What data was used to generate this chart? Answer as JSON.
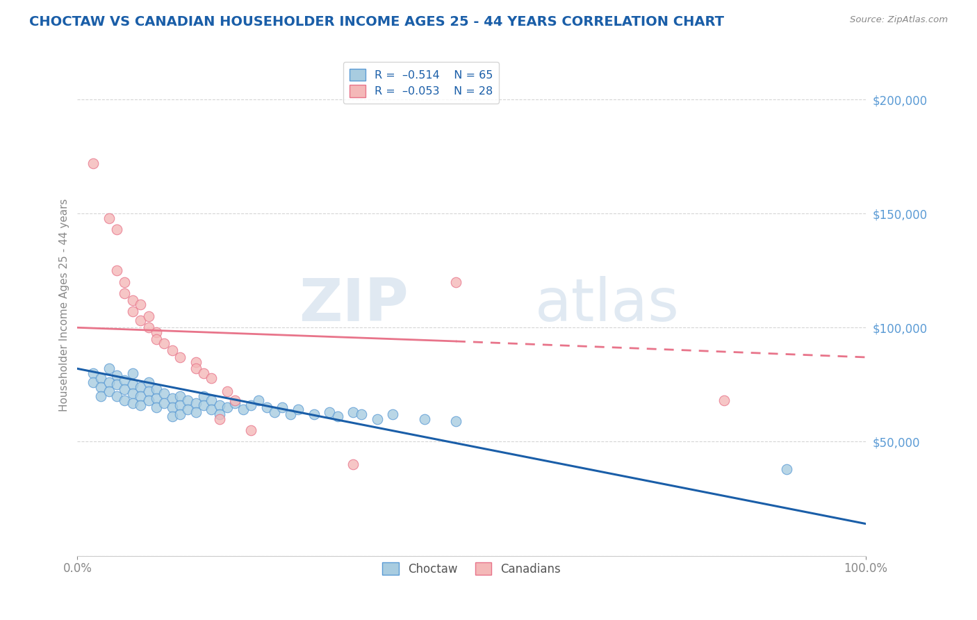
{
  "title": "CHOCTAW VS CANADIAN HOUSEHOLDER INCOME AGES 25 - 44 YEARS CORRELATION CHART",
  "source": "Source: ZipAtlas.com",
  "ylabel": "Householder Income Ages 25 - 44 years",
  "watermark_zip": "ZIP",
  "watermark_atlas": "atlas",
  "xmin": 0.0,
  "xmax": 100.0,
  "ymin": 0,
  "ymax": 220000,
  "yticks": [
    0,
    50000,
    100000,
    150000,
    200000
  ],
  "blue_color": "#a8cce0",
  "blue_edge": "#5b9bd5",
  "pink_color": "#f4b8b8",
  "pink_edge": "#e8748a",
  "blue_line_color": "#1a5ea8",
  "pink_line_color": "#e8748a",
  "choctaw_trend_x0": 0,
  "choctaw_trend_y0": 82000,
  "choctaw_trend_x1": 100,
  "choctaw_trend_y1": 14000,
  "canadian_trend_solid_x0": 0,
  "canadian_trend_solid_y0": 100000,
  "canadian_trend_solid_x1": 48,
  "canadian_trend_solid_y1": 94000,
  "canadian_trend_dashed_x0": 48,
  "canadian_trend_dashed_y0": 94000,
  "canadian_trend_dashed_x1": 100,
  "canadian_trend_dashed_y1": 87000,
  "choctaw_points": [
    [
      2,
      80000
    ],
    [
      2,
      76000
    ],
    [
      3,
      78000
    ],
    [
      3,
      74000
    ],
    [
      3,
      70000
    ],
    [
      4,
      82000
    ],
    [
      4,
      76000
    ],
    [
      4,
      72000
    ],
    [
      5,
      79000
    ],
    [
      5,
      75000
    ],
    [
      5,
      70000
    ],
    [
      6,
      77000
    ],
    [
      6,
      73000
    ],
    [
      6,
      68000
    ],
    [
      7,
      80000
    ],
    [
      7,
      75000
    ],
    [
      7,
      71000
    ],
    [
      7,
      67000
    ],
    [
      8,
      74000
    ],
    [
      8,
      70000
    ],
    [
      8,
      66000
    ],
    [
      9,
      76000
    ],
    [
      9,
      72000
    ],
    [
      9,
      68000
    ],
    [
      10,
      73000
    ],
    [
      10,
      69000
    ],
    [
      10,
      65000
    ],
    [
      11,
      71000
    ],
    [
      11,
      67000
    ],
    [
      12,
      69000
    ],
    [
      12,
      65000
    ],
    [
      12,
      61000
    ],
    [
      13,
      70000
    ],
    [
      13,
      66000
    ],
    [
      13,
      62000
    ],
    [
      14,
      68000
    ],
    [
      14,
      64000
    ],
    [
      15,
      67000
    ],
    [
      15,
      63000
    ],
    [
      16,
      70000
    ],
    [
      16,
      66000
    ],
    [
      17,
      68000
    ],
    [
      17,
      64000
    ],
    [
      18,
      66000
    ],
    [
      18,
      62000
    ],
    [
      19,
      65000
    ],
    [
      20,
      67000
    ],
    [
      21,
      64000
    ],
    [
      22,
      66000
    ],
    [
      23,
      68000
    ],
    [
      24,
      65000
    ],
    [
      25,
      63000
    ],
    [
      26,
      65000
    ],
    [
      27,
      62000
    ],
    [
      28,
      64000
    ],
    [
      30,
      62000
    ],
    [
      32,
      63000
    ],
    [
      33,
      61000
    ],
    [
      35,
      63000
    ],
    [
      36,
      62000
    ],
    [
      38,
      60000
    ],
    [
      40,
      62000
    ],
    [
      44,
      60000
    ],
    [
      48,
      59000
    ],
    [
      90,
      38000
    ]
  ],
  "canadian_points": [
    [
      2,
      172000
    ],
    [
      4,
      148000
    ],
    [
      5,
      143000
    ],
    [
      5,
      125000
    ],
    [
      6,
      120000
    ],
    [
      6,
      115000
    ],
    [
      7,
      112000
    ],
    [
      7,
      107000
    ],
    [
      8,
      110000
    ],
    [
      8,
      103000
    ],
    [
      9,
      105000
    ],
    [
      9,
      100000
    ],
    [
      10,
      98000
    ],
    [
      10,
      95000
    ],
    [
      11,
      93000
    ],
    [
      12,
      90000
    ],
    [
      13,
      87000
    ],
    [
      15,
      85000
    ],
    [
      15,
      82000
    ],
    [
      16,
      80000
    ],
    [
      17,
      78000
    ],
    [
      18,
      60000
    ],
    [
      19,
      72000
    ],
    [
      20,
      68000
    ],
    [
      22,
      55000
    ],
    [
      35,
      40000
    ],
    [
      48,
      120000
    ],
    [
      82,
      68000
    ]
  ],
  "grid_color": "#d5d5d5",
  "bg_color": "#ffffff",
  "title_color": "#1a5ea8",
  "source_color": "#888888",
  "axis_color": "#888888",
  "tick_color_y": "#5b9bd5"
}
